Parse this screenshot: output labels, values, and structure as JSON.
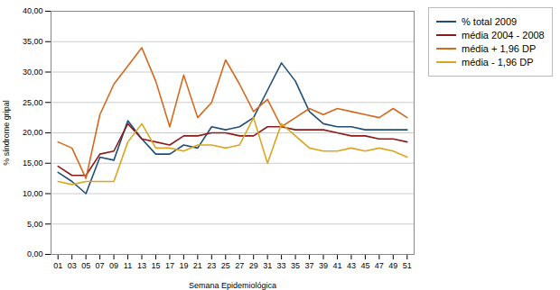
{
  "chart_data": {
    "type": "line",
    "xlabel": "Semana Epidemiológica",
    "ylabel": "% síndrome gripal",
    "x": [
      1,
      3,
      5,
      7,
      9,
      11,
      13,
      15,
      17,
      19,
      21,
      23,
      25,
      27,
      29,
      31,
      33,
      35,
      37,
      39,
      41,
      43,
      45,
      47,
      49,
      51
    ],
    "xlim": [
      0,
      52
    ],
    "xticks": [
      {
        "value": 1,
        "label": "01"
      },
      {
        "value": 3,
        "label": "03"
      },
      {
        "value": 5,
        "label": "05"
      },
      {
        "value": 7,
        "label": "07"
      },
      {
        "value": 9,
        "label": "09"
      },
      {
        "value": 11,
        "label": "11"
      },
      {
        "value": 13,
        "label": "13"
      },
      {
        "value": 15,
        "label": "15"
      },
      {
        "value": 17,
        "label": "17"
      },
      {
        "value": 19,
        "label": "19"
      },
      {
        "value": 21,
        "label": "21"
      },
      {
        "value": 23,
        "label": "23"
      },
      {
        "value": 25,
        "label": "25"
      },
      {
        "value": 27,
        "label": "27"
      },
      {
        "value": 29,
        "label": "29"
      },
      {
        "value": 31,
        "label": "31"
      },
      {
        "value": 33,
        "label": "33"
      },
      {
        "value": 35,
        "label": "35"
      },
      {
        "value": 37,
        "label": "37"
      },
      {
        "value": 39,
        "label": "39"
      },
      {
        "value": 41,
        "label": "41"
      },
      {
        "value": 43,
        "label": "43"
      },
      {
        "value": 45,
        "label": "45"
      },
      {
        "value": 47,
        "label": "47"
      },
      {
        "value": 49,
        "label": "49"
      },
      {
        "value": 51,
        "label": "51"
      }
    ],
    "ylim": [
      0,
      40
    ],
    "yticks": [
      {
        "value": 0,
        "label": "0,00"
      },
      {
        "value": 5,
        "label": "5,00"
      },
      {
        "value": 10,
        "label": "10,00"
      },
      {
        "value": 15,
        "label": "15,00"
      },
      {
        "value": 20,
        "label": "20,00"
      },
      {
        "value": 25,
        "label": "25,00"
      },
      {
        "value": 30,
        "label": "30,00"
      },
      {
        "value": 35,
        "label": "35,00"
      },
      {
        "value": 40,
        "label": "40,00"
      }
    ],
    "grid": true,
    "legend": "right",
    "series": [
      {
        "name": "% total 2009",
        "color": "#1F4E79",
        "values": [
          13.5,
          12.0,
          10.0,
          16.0,
          15.5,
          22.0,
          19.0,
          16.5,
          16.5,
          18.0,
          17.5,
          21.0,
          20.5,
          21.0,
          22.5,
          27.0,
          31.5,
          28.5,
          23.5,
          21.5,
          21.0,
          21.0,
          20.5,
          20.5,
          20.5,
          20.5
        ]
      },
      {
        "name": "média 2004 - 2008",
        "color": "#8B1A1A",
        "values": [
          14.5,
          13.0,
          13.0,
          16.5,
          17.0,
          21.5,
          19.0,
          18.5,
          18.0,
          19.5,
          19.5,
          20.0,
          20.0,
          19.5,
          19.5,
          21.0,
          21.0,
          20.5,
          20.5,
          20.5,
          20.0,
          19.5,
          19.5,
          19.0,
          19.0,
          18.5
        ]
      },
      {
        "name": "média + 1,96 DP",
        "color": "#D2691E",
        "values": [
          18.5,
          17.5,
          12.5,
          23.0,
          28.0,
          31.0,
          34.0,
          28.5,
          21.0,
          29.5,
          22.5,
          25.0,
          32.0,
          28.0,
          23.5,
          25.5,
          21.0,
          22.5,
          24.0,
          23.0,
          24.0,
          23.5,
          23.0,
          22.5,
          24.0,
          22.5
        ]
      },
      {
        "name": "média - 1,96 DP",
        "color": "#DAA520",
        "values": [
          12.0,
          11.5,
          12.0,
          12.0,
          12.0,
          18.5,
          21.5,
          17.5,
          17.5,
          17.0,
          18.0,
          18.0,
          17.5,
          18.0,
          22.5,
          15.0,
          21.5,
          19.5,
          17.5,
          17.0,
          17.0,
          17.5,
          17.0,
          17.5,
          17.0,
          16.0
        ]
      }
    ]
  }
}
